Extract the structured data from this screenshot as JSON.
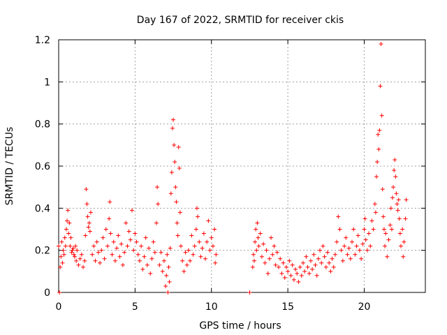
{
  "chart_data": {
    "type": "scatter",
    "title": "Day 167 of 2022, SRMTID for receiver ckis",
    "xlabel": "GPS time / hours",
    "ylabel": "SRMTID / TECUs",
    "xlim": [
      0,
      24
    ],
    "ylim": [
      0,
      1.2
    ],
    "xticks": [
      0,
      5,
      10,
      15,
      20
    ],
    "xtick_labels": [
      "0",
      "5",
      "10",
      "15",
      "20"
    ],
    "yticks": [
      0,
      0.2,
      0.4,
      0.6,
      0.8,
      1,
      1.2
    ],
    "ytick_labels": [
      "0",
      "0.2",
      "0.4",
      "0.6",
      "0.8",
      "1",
      "1.2"
    ],
    "grid": true,
    "marker": "+",
    "color": "#ff0000",
    "series": [
      {
        "name": "SRMTID",
        "points": [
          [
            0.0,
            0.22
          ],
          [
            0.05,
            0.0
          ],
          [
            0.1,
            0.12
          ],
          [
            0.15,
            0.17
          ],
          [
            0.2,
            0.24
          ],
          [
            0.25,
            0.14
          ],
          [
            0.3,
            0.2
          ],
          [
            0.35,
            0.18
          ],
          [
            0.4,
            0.26
          ],
          [
            0.45,
            0.22
          ],
          [
            0.5,
            0.3
          ],
          [
            0.55,
            0.34
          ],
          [
            0.6,
            0.39
          ],
          [
            0.65,
            0.28
          ],
          [
            0.7,
            0.33
          ],
          [
            0.75,
            0.22
          ],
          [
            0.8,
            0.26
          ],
          [
            0.85,
            0.19
          ],
          [
            0.9,
            0.2
          ],
          [
            0.95,
            0.21
          ],
          [
            1.0,
            0.18
          ],
          [
            1.05,
            0.17
          ],
          [
            1.1,
            0.22
          ],
          [
            1.15,
            0.15
          ],
          [
            1.2,
            0.2
          ],
          [
            1.3,
            0.13
          ],
          [
            1.4,
            0.16
          ],
          [
            1.5,
            0.18
          ],
          [
            1.6,
            0.12
          ],
          [
            1.7,
            0.15
          ],
          [
            1.75,
            0.27
          ],
          [
            1.8,
            0.49
          ],
          [
            1.85,
            0.42
          ],
          [
            1.9,
            0.36
          ],
          [
            1.95,
            0.31
          ],
          [
            2.0,
            0.33
          ],
          [
            2.05,
            0.29
          ],
          [
            2.1,
            0.38
          ],
          [
            2.2,
            0.18
          ],
          [
            2.3,
            0.22
          ],
          [
            2.4,
            0.15
          ],
          [
            2.5,
            0.24
          ],
          [
            2.6,
            0.19
          ],
          [
            2.7,
            0.14
          ],
          [
            2.8,
            0.2
          ],
          [
            2.9,
            0.26
          ],
          [
            3.0,
            0.16
          ],
          [
            3.1,
            0.3
          ],
          [
            3.2,
            0.22
          ],
          [
            3.3,
            0.35
          ],
          [
            3.35,
            0.43
          ],
          [
            3.4,
            0.28
          ],
          [
            3.5,
            0.18
          ],
          [
            3.6,
            0.24
          ],
          [
            3.7,
            0.15
          ],
          [
            3.8,
            0.21
          ],
          [
            3.9,
            0.27
          ],
          [
            4.0,
            0.17
          ],
          [
            4.1,
            0.23
          ],
          [
            4.2,
            0.13
          ],
          [
            4.3,
            0.19
          ],
          [
            4.4,
            0.33
          ],
          [
            4.5,
            0.22
          ],
          [
            4.6,
            0.29
          ],
          [
            4.7,
            0.25
          ],
          [
            4.8,
            0.39
          ],
          [
            4.9,
            0.2
          ],
          [
            5.0,
            0.28
          ],
          [
            5.1,
            0.24
          ],
          [
            5.2,
            0.18
          ],
          [
            5.3,
            0.15
          ],
          [
            5.4,
            0.22
          ],
          [
            5.5,
            0.11
          ],
          [
            5.6,
            0.17
          ],
          [
            5.7,
            0.26
          ],
          [
            5.8,
            0.13
          ],
          [
            5.9,
            0.21
          ],
          [
            6.0,
            0.09
          ],
          [
            6.1,
            0.16
          ],
          [
            6.2,
            0.24
          ],
          [
            6.3,
            0.19
          ],
          [
            6.4,
            0.33
          ],
          [
            6.45,
            0.5
          ],
          [
            6.5,
            0.42
          ],
          [
            6.6,
            0.13
          ],
          [
            6.7,
            0.19
          ],
          [
            6.8,
            0.1
          ],
          [
            6.9,
            0.15
          ],
          [
            7.0,
            0.03
          ],
          [
            7.05,
            0.08
          ],
          [
            7.1,
            0.18
          ],
          [
            7.15,
            0.0
          ],
          [
            7.2,
            0.12
          ],
          [
            7.25,
            0.05
          ],
          [
            7.3,
            0.21
          ],
          [
            7.35,
            0.47
          ],
          [
            7.4,
            0.57
          ],
          [
            7.45,
            0.78
          ],
          [
            7.5,
            0.82
          ],
          [
            7.55,
            0.7
          ],
          [
            7.6,
            0.62
          ],
          [
            7.65,
            0.5
          ],
          [
            7.7,
            0.43
          ],
          [
            7.75,
            0.33
          ],
          [
            7.8,
            0.27
          ],
          [
            7.85,
            0.69
          ],
          [
            7.9,
            0.59
          ],
          [
            7.95,
            0.38
          ],
          [
            8.0,
            0.22
          ],
          [
            8.1,
            0.15
          ],
          [
            8.2,
            0.1
          ],
          [
            8.3,
            0.19
          ],
          [
            8.4,
            0.13
          ],
          [
            8.5,
            0.2
          ],
          [
            8.6,
            0.15
          ],
          [
            8.7,
            0.27
          ],
          [
            8.8,
            0.18
          ],
          [
            8.9,
            0.22
          ],
          [
            9.0,
            0.3
          ],
          [
            9.05,
            0.4
          ],
          [
            9.1,
            0.36
          ],
          [
            9.2,
            0.24
          ],
          [
            9.3,
            0.17
          ],
          [
            9.4,
            0.21
          ],
          [
            9.5,
            0.28
          ],
          [
            9.6,
            0.16
          ],
          [
            9.7,
            0.24
          ],
          [
            9.8,
            0.34
          ],
          [
            9.9,
            0.2
          ],
          [
            10.0,
            0.26
          ],
          [
            10.1,
            0.22
          ],
          [
            10.2,
            0.3
          ],
          [
            10.25,
            0.14
          ],
          [
            10.3,
            0.18
          ],
          [
            12.5,
            0.0
          ],
          [
            12.7,
            0.12
          ],
          [
            12.75,
            0.18
          ],
          [
            12.8,
            0.15
          ],
          [
            12.85,
            0.24
          ],
          [
            12.9,
            0.3
          ],
          [
            12.95,
            0.2
          ],
          [
            13.0,
            0.33
          ],
          [
            13.05,
            0.26
          ],
          [
            13.1,
            0.22
          ],
          [
            13.2,
            0.28
          ],
          [
            13.3,
            0.17
          ],
          [
            13.4,
            0.23
          ],
          [
            13.5,
            0.14
          ],
          [
            13.6,
            0.2
          ],
          [
            13.7,
            0.09
          ],
          [
            13.8,
            0.16
          ],
          [
            13.9,
            0.26
          ],
          [
            14.0,
            0.18
          ],
          [
            14.1,
            0.22
          ],
          [
            14.2,
            0.13
          ],
          [
            14.3,
            0.19
          ],
          [
            14.4,
            0.12
          ],
          [
            14.5,
            0.16
          ],
          [
            14.6,
            0.09
          ],
          [
            14.7,
            0.14
          ],
          [
            14.8,
            0.07
          ],
          [
            14.9,
            0.12
          ],
          [
            15.0,
            0.1
          ],
          [
            15.1,
            0.15
          ],
          [
            15.2,
            0.08
          ],
          [
            15.3,
            0.13
          ],
          [
            15.4,
            0.06
          ],
          [
            15.5,
            0.11
          ],
          [
            15.6,
            0.09
          ],
          [
            15.7,
            0.05
          ],
          [
            15.8,
            0.12
          ],
          [
            15.9,
            0.08
          ],
          [
            16.0,
            0.14
          ],
          [
            16.1,
            0.1
          ],
          [
            16.2,
            0.17
          ],
          [
            16.3,
            0.12
          ],
          [
            16.4,
            0.09
          ],
          [
            16.5,
            0.15
          ],
          [
            16.6,
            0.11
          ],
          [
            16.7,
            0.18
          ],
          [
            16.8,
            0.13
          ],
          [
            16.9,
            0.08
          ],
          [
            17.0,
            0.16
          ],
          [
            17.1,
            0.2
          ],
          [
            17.2,
            0.14
          ],
          [
            17.3,
            0.22
          ],
          [
            17.4,
            0.17
          ],
          [
            17.5,
            0.12
          ],
          [
            17.6,
            0.19
          ],
          [
            17.7,
            0.14
          ],
          [
            17.8,
            0.1
          ],
          [
            17.9,
            0.16
          ],
          [
            18.0,
            0.12
          ],
          [
            18.1,
            0.18
          ],
          [
            18.2,
            0.24
          ],
          [
            18.3,
            0.36
          ],
          [
            18.4,
            0.3
          ],
          [
            18.5,
            0.2
          ],
          [
            18.6,
            0.15
          ],
          [
            18.7,
            0.22
          ],
          [
            18.8,
            0.26
          ],
          [
            18.9,
            0.18
          ],
          [
            19.0,
            0.21
          ],
          [
            19.1,
            0.16
          ],
          [
            19.2,
            0.24
          ],
          [
            19.3,
            0.3
          ],
          [
            19.4,
            0.18
          ],
          [
            19.5,
            0.22
          ],
          [
            19.6,
            0.27
          ],
          [
            19.7,
            0.2
          ],
          [
            19.8,
            0.16
          ],
          [
            19.9,
            0.23
          ],
          [
            20.0,
            0.3
          ],
          [
            20.05,
            0.35
          ],
          [
            20.1,
            0.25
          ],
          [
            20.2,
            0.2
          ],
          [
            20.3,
            0.28
          ],
          [
            20.4,
            0.22
          ],
          [
            20.5,
            0.34
          ],
          [
            20.6,
            0.3
          ],
          [
            20.7,
            0.42
          ],
          [
            20.75,
            0.38
          ],
          [
            20.8,
            0.55
          ],
          [
            20.85,
            0.62
          ],
          [
            20.9,
            0.75
          ],
          [
            20.95,
            0.68
          ],
          [
            21.0,
            0.77
          ],
          [
            21.05,
            0.98
          ],
          [
            21.1,
            1.18
          ],
          [
            21.15,
            0.84
          ],
          [
            21.2,
            0.49
          ],
          [
            21.25,
            0.36
          ],
          [
            21.3,
            0.3
          ],
          [
            21.35,
            0.22
          ],
          [
            21.4,
            0.28
          ],
          [
            21.5,
            0.17
          ],
          [
            21.6,
            0.25
          ],
          [
            21.7,
            0.32
          ],
          [
            21.75,
            0.4
          ],
          [
            21.8,
            0.3
          ],
          [
            21.85,
            0.45
          ],
          [
            21.9,
            0.5
          ],
          [
            21.95,
            0.58
          ],
          [
            22.0,
            0.63
          ],
          [
            22.05,
            0.55
          ],
          [
            22.1,
            0.47
          ],
          [
            22.15,
            0.42
          ],
          [
            22.2,
            0.39
          ],
          [
            22.25,
            0.44
          ],
          [
            22.3,
            0.35
          ],
          [
            22.35,
            0.28
          ],
          [
            22.4,
            0.22
          ],
          [
            22.5,
            0.3
          ],
          [
            22.55,
            0.17
          ],
          [
            22.6,
            0.24
          ],
          [
            22.7,
            0.35
          ],
          [
            22.75,
            0.44
          ]
        ]
      }
    ]
  }
}
